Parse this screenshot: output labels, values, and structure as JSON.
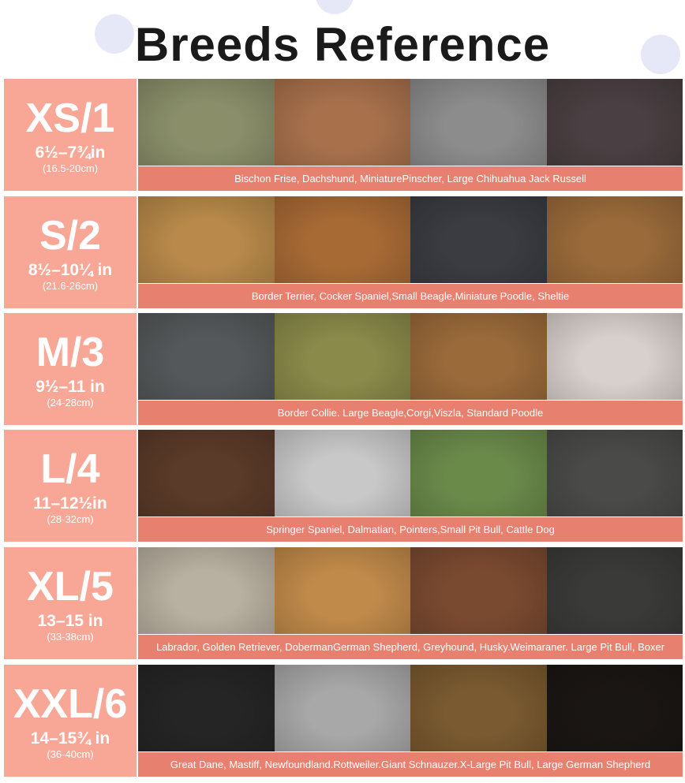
{
  "title": "Breeds Reference",
  "colors": {
    "label_bg": "#f8a796",
    "caption_bg": "#e8806f",
    "text": "#ffffff"
  },
  "sizes": [
    {
      "size": "XS/1",
      "inches": "6½–7¾in",
      "cm": "(16.5-20cm)",
      "breeds": "Bischon Frise, Dachshund, MiniaturePinscher, Large Chihuahua Jack Russell",
      "photos": [
        "white poodle",
        "rat terrier",
        "jack russell (grayscale)",
        "italian greyhound"
      ],
      "photo_colors": [
        "#8a8f6a",
        "#a8714c",
        "#8c8c8c",
        "#4a3f42"
      ]
    },
    {
      "size": "S/2",
      "inches": "8½–10¼ in",
      "cm": "(21.6-26cm)",
      "breeds": "Border Terrier, Cocker Spaniel,Small Beagle,Miniature Poodle, Sheltie",
      "photos": [
        "cocker spaniel",
        "beagle",
        "black poodle",
        "sheltie"
      ],
      "photo_colors": [
        "#b8894a",
        "#a86a35",
        "#3a3c42",
        "#9a6a3a"
      ]
    },
    {
      "size": "M/3",
      "inches": "9½–11 in",
      "cm": "(24-28cm)",
      "breeds": "Border Collie. Large Beagle,Corgi,Viszla, Standard Poodle",
      "photos": [
        "border collie",
        "basset beagle",
        "vizsla",
        "standard poodle"
      ],
      "photo_colors": [
        "#55585a",
        "#8a8a4a",
        "#9a6a3a",
        "#d8d0cc"
      ]
    },
    {
      "size": "L/4",
      "inches": "11–12½in",
      "cm": "(28-32cm)",
      "breeds": "Springer Spaniel, Dalmatian, Pointers,Small Pit Bull, Cattle Dog",
      "photos": [
        "springer spaniel",
        "dalmatian",
        "pointer",
        "cattle dog"
      ],
      "photo_colors": [
        "#5a3a28",
        "#c8c8c8",
        "#6a8a4a",
        "#4a4a48"
      ]
    },
    {
      "size": "XL/5",
      "inches": "13–15 in",
      "cm": "(33-38cm)",
      "breeds": "Labrador, Golden Retriever, DobermanGerman Shepherd, Greyhound, Husky.Weimaraner. Large Pit Bull, Boxer",
      "photos": [
        "labrador",
        "golden retriever",
        "pit bull",
        "husky"
      ],
      "photo_colors": [
        "#b8b0a0",
        "#c08a4a",
        "#7a4a30",
        "#3a3a38"
      ]
    },
    {
      "size": "XXL/6",
      "inches": "14–15¾ in",
      "cm": "(36-40cm)",
      "breeds": "Great Dane, Mastiff, Newfoundland.Rottweiler.Giant Schnauzer.X-Large Pit Bull, Large German Shepherd",
      "photos": [
        "newfoundland",
        "great dane",
        "german shepherd",
        "tibetan mastiff"
      ],
      "photo_colors": [
        "#252525",
        "#a8a8a8",
        "#7a5a30",
        "#1a1614"
      ]
    }
  ]
}
